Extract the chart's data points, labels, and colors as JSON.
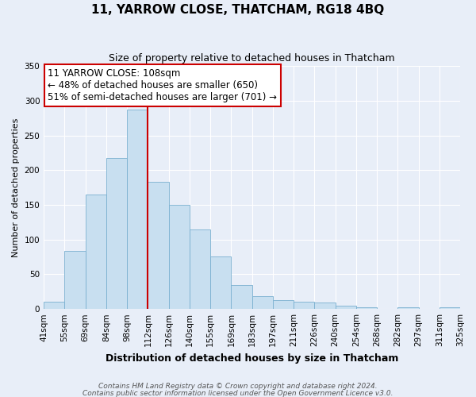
{
  "title": "11, YARROW CLOSE, THATCHAM, RG18 4BQ",
  "subtitle": "Size of property relative to detached houses in Thatcham",
  "xlabel": "Distribution of detached houses by size in Thatcham",
  "ylabel": "Number of detached properties",
  "bar_labels": [
    "41sqm",
    "55sqm",
    "69sqm",
    "84sqm",
    "98sqm",
    "112sqm",
    "126sqm",
    "140sqm",
    "155sqm",
    "169sqm",
    "183sqm",
    "197sqm",
    "211sqm",
    "226sqm",
    "240sqm",
    "254sqm",
    "268sqm",
    "282sqm",
    "297sqm",
    "311sqm",
    "325sqm"
  ],
  "bar_values": [
    11,
    84,
    165,
    217,
    287,
    183,
    150,
    115,
    76,
    34,
    18,
    13,
    11,
    9,
    5,
    2,
    0,
    2,
    0,
    3
  ],
  "bar_color": "#c8dff0",
  "bar_edge_color": "#7ab0d0",
  "marker_color": "#cc0000",
  "annotation_line1": "11 YARROW CLOSE: 108sqm",
  "annotation_line2": "← 48% of detached houses are smaller (650)",
  "annotation_line3": "51% of semi-detached houses are larger (701) →",
  "ylim": [
    0,
    350
  ],
  "yticks": [
    0,
    50,
    100,
    150,
    200,
    250,
    300,
    350
  ],
  "footnote1": "Contains HM Land Registry data © Crown copyright and database right 2024.",
  "footnote2": "Contains public sector information licensed under the Open Government Licence v3.0.",
  "bg_color": "#e8eef8",
  "grid_color": "#ffffff",
  "title_fontsize": 11,
  "subtitle_fontsize": 9,
  "xlabel_fontsize": 9,
  "ylabel_fontsize": 8,
  "tick_fontsize": 7.5,
  "annot_fontsize": 8.5,
  "footnote_fontsize": 6.5
}
